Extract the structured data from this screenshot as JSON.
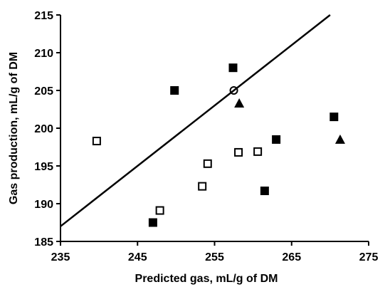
{
  "chart_data": {
    "type": "scatter",
    "title": "",
    "xlabel": "Predicted gas, mL/g of DM",
    "ylabel": "Gas production, mL/g of DM",
    "xlim": [
      235,
      275
    ],
    "ylim": [
      185,
      215
    ],
    "xticks": [
      235,
      245,
      255,
      265,
      275
    ],
    "yticks": [
      185,
      190,
      195,
      200,
      205,
      210,
      215
    ],
    "grid": false,
    "legend": "none",
    "reference_line": {
      "x": [
        235,
        270
      ],
      "y": [
        187,
        215
      ]
    },
    "series": [
      {
        "marker": "filled-square",
        "points": [
          [
            247,
            187.5
          ],
          [
            249.8,
            205
          ],
          [
            257.4,
            208
          ],
          [
            261.5,
            191.7
          ],
          [
            263,
            198.5
          ],
          [
            270.5,
            201.5
          ]
        ]
      },
      {
        "marker": "open-square",
        "points": [
          [
            239.7,
            198.3
          ],
          [
            247.9,
            189.1
          ],
          [
            253.4,
            192.3
          ],
          [
            254.1,
            195.3
          ],
          [
            258.1,
            196.8
          ],
          [
            260.6,
            196.9
          ]
        ]
      },
      {
        "marker": "filled-triangle",
        "points": [
          [
            258.2,
            203.3
          ],
          [
            271.3,
            198.5
          ]
        ]
      },
      {
        "marker": "open-circle",
        "points": [
          [
            257.5,
            205
          ]
        ]
      }
    ]
  },
  "colors": {
    "ink": "#000000",
    "background": "#ffffff"
  }
}
